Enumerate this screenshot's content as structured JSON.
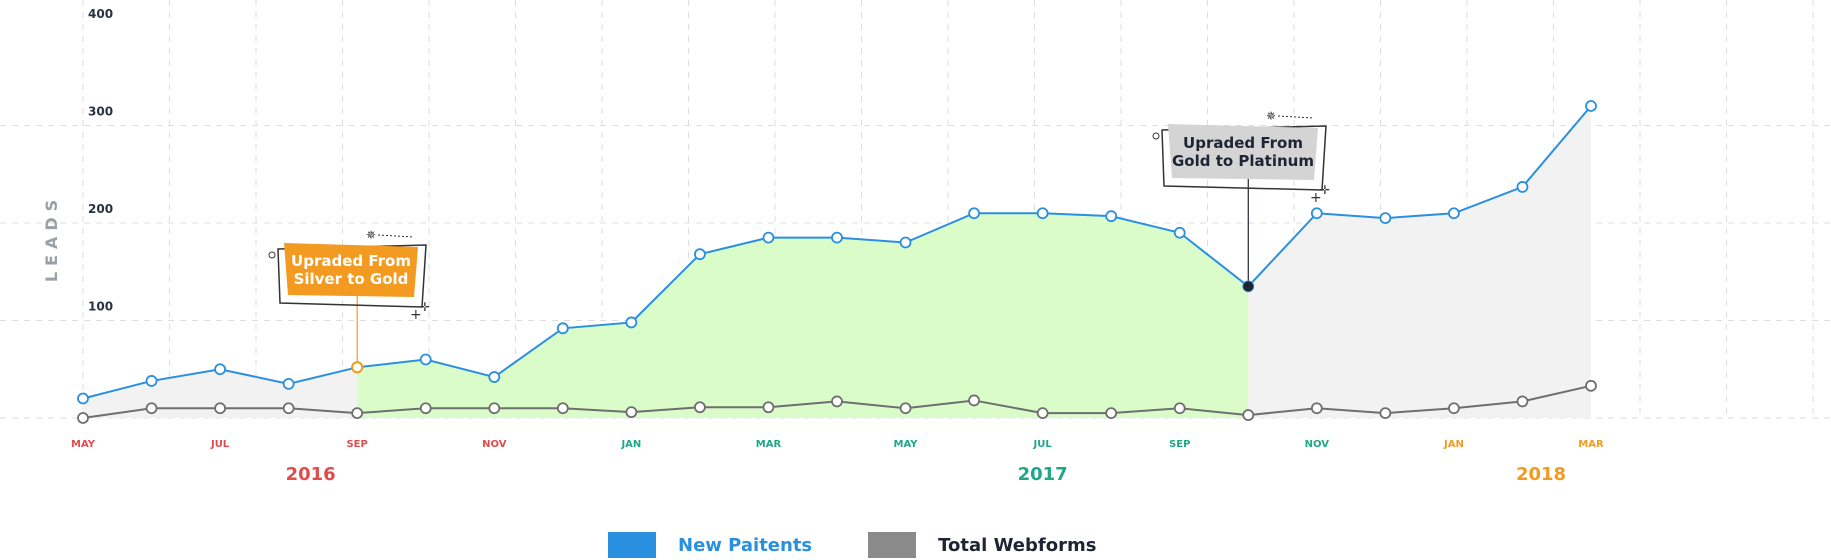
{
  "chart_data": {
    "type": "line",
    "ylabel": "LEADS",
    "ylim": [
      0,
      400
    ],
    "yticks": [
      100,
      200,
      300,
      400
    ],
    "grid": true,
    "x": [
      "2016-05",
      "2016-06",
      "2016-07",
      "2016-08",
      "2016-09",
      "2016-10",
      "2016-11",
      "2016-12",
      "2017-01",
      "2017-02",
      "2017-03",
      "2017-04",
      "2017-05",
      "2017-06",
      "2017-07",
      "2017-08",
      "2017-09",
      "2017-10",
      "2017-11",
      "2017-12",
      "2018-01",
      "2018-02",
      "2018-03"
    ],
    "tick_labels": [
      {
        "text": "MAY",
        "x": "2016-05",
        "color": "#e04b4b"
      },
      {
        "text": "JUL",
        "x": "2016-07",
        "color": "#e04b4b"
      },
      {
        "text": "SEP",
        "x": "2016-09",
        "color": "#e04b4b"
      },
      {
        "text": "NOV",
        "x": "2016-11",
        "color": "#e04b4b"
      },
      {
        "text": "JAN",
        "x": "2017-01",
        "color": "#1ea88a"
      },
      {
        "text": "MAR",
        "x": "2017-03",
        "color": "#1ea88a"
      },
      {
        "text": "MAY",
        "x": "2017-05",
        "color": "#1ea88a"
      },
      {
        "text": "JUL",
        "x": "2017-07",
        "color": "#1ea88a"
      },
      {
        "text": "SEP",
        "x": "2017-09",
        "color": "#1ea88a"
      },
      {
        "text": "NOV",
        "x": "2017-11",
        "color": "#1ea88a"
      },
      {
        "text": "JAN",
        "x": "2018-01",
        "color": "#f39a21"
      },
      {
        "text": "MAR",
        "x": "2018-03",
        "color": "#f39a21"
      }
    ],
    "years": [
      {
        "text": "2016",
        "x": "2016-08",
        "color": "#e04b4b"
      },
      {
        "text": "2017",
        "x": "2017-07",
        "color": "#1ea88a"
      },
      {
        "text": "2018",
        "x": "2018-03",
        "color": "#f39a21"
      }
    ],
    "series": [
      {
        "name": "New Paitents",
        "color": "#2b8fe0",
        "values": [
          20,
          38,
          50,
          35,
          52,
          60,
          42,
          92,
          98,
          168,
          185,
          185,
          180,
          210,
          210,
          207,
          190,
          135,
          210,
          205,
          210,
          237,
          320
        ]
      },
      {
        "name": "Total Webforms",
        "color": "#6f6f6f",
        "values": [
          0,
          10,
          10,
          10,
          5,
          10,
          10,
          10,
          6,
          11,
          11,
          17,
          10,
          18,
          5,
          5,
          10,
          3,
          10,
          5,
          10,
          17,
          33
        ]
      }
    ],
    "shaded_regions": [
      {
        "from": "2016-09",
        "to": "2017-10",
        "color": "#d9fcc9"
      },
      {
        "from": "2016-05",
        "to": "2016-09",
        "color": "#f2f2f2"
      },
      {
        "from": "2017-10",
        "to": "2018-03",
        "color": "#f2f2f2"
      }
    ],
    "annotations": [
      {
        "lines": [
          "Upraded From",
          "Silver to Gold"
        ],
        "x": "2016-09",
        "value": 52,
        "bg": "#f39a21",
        "text_color": "#ffffff",
        "marker_color": "#f39a21"
      },
      {
        "lines": [
          "Upraded From",
          "Gold to Platinum"
        ],
        "x": "2017-10",
        "value": 135,
        "bg": "#d4d4d4",
        "text_color": "#1e2433",
        "marker_color": "#1e2433"
      }
    ]
  },
  "legend": {
    "items": [
      {
        "label": "New Paitents",
        "color": "#2b8fe0"
      },
      {
        "label": "Total Webforms",
        "color": "#8a8a8a"
      }
    ]
  }
}
